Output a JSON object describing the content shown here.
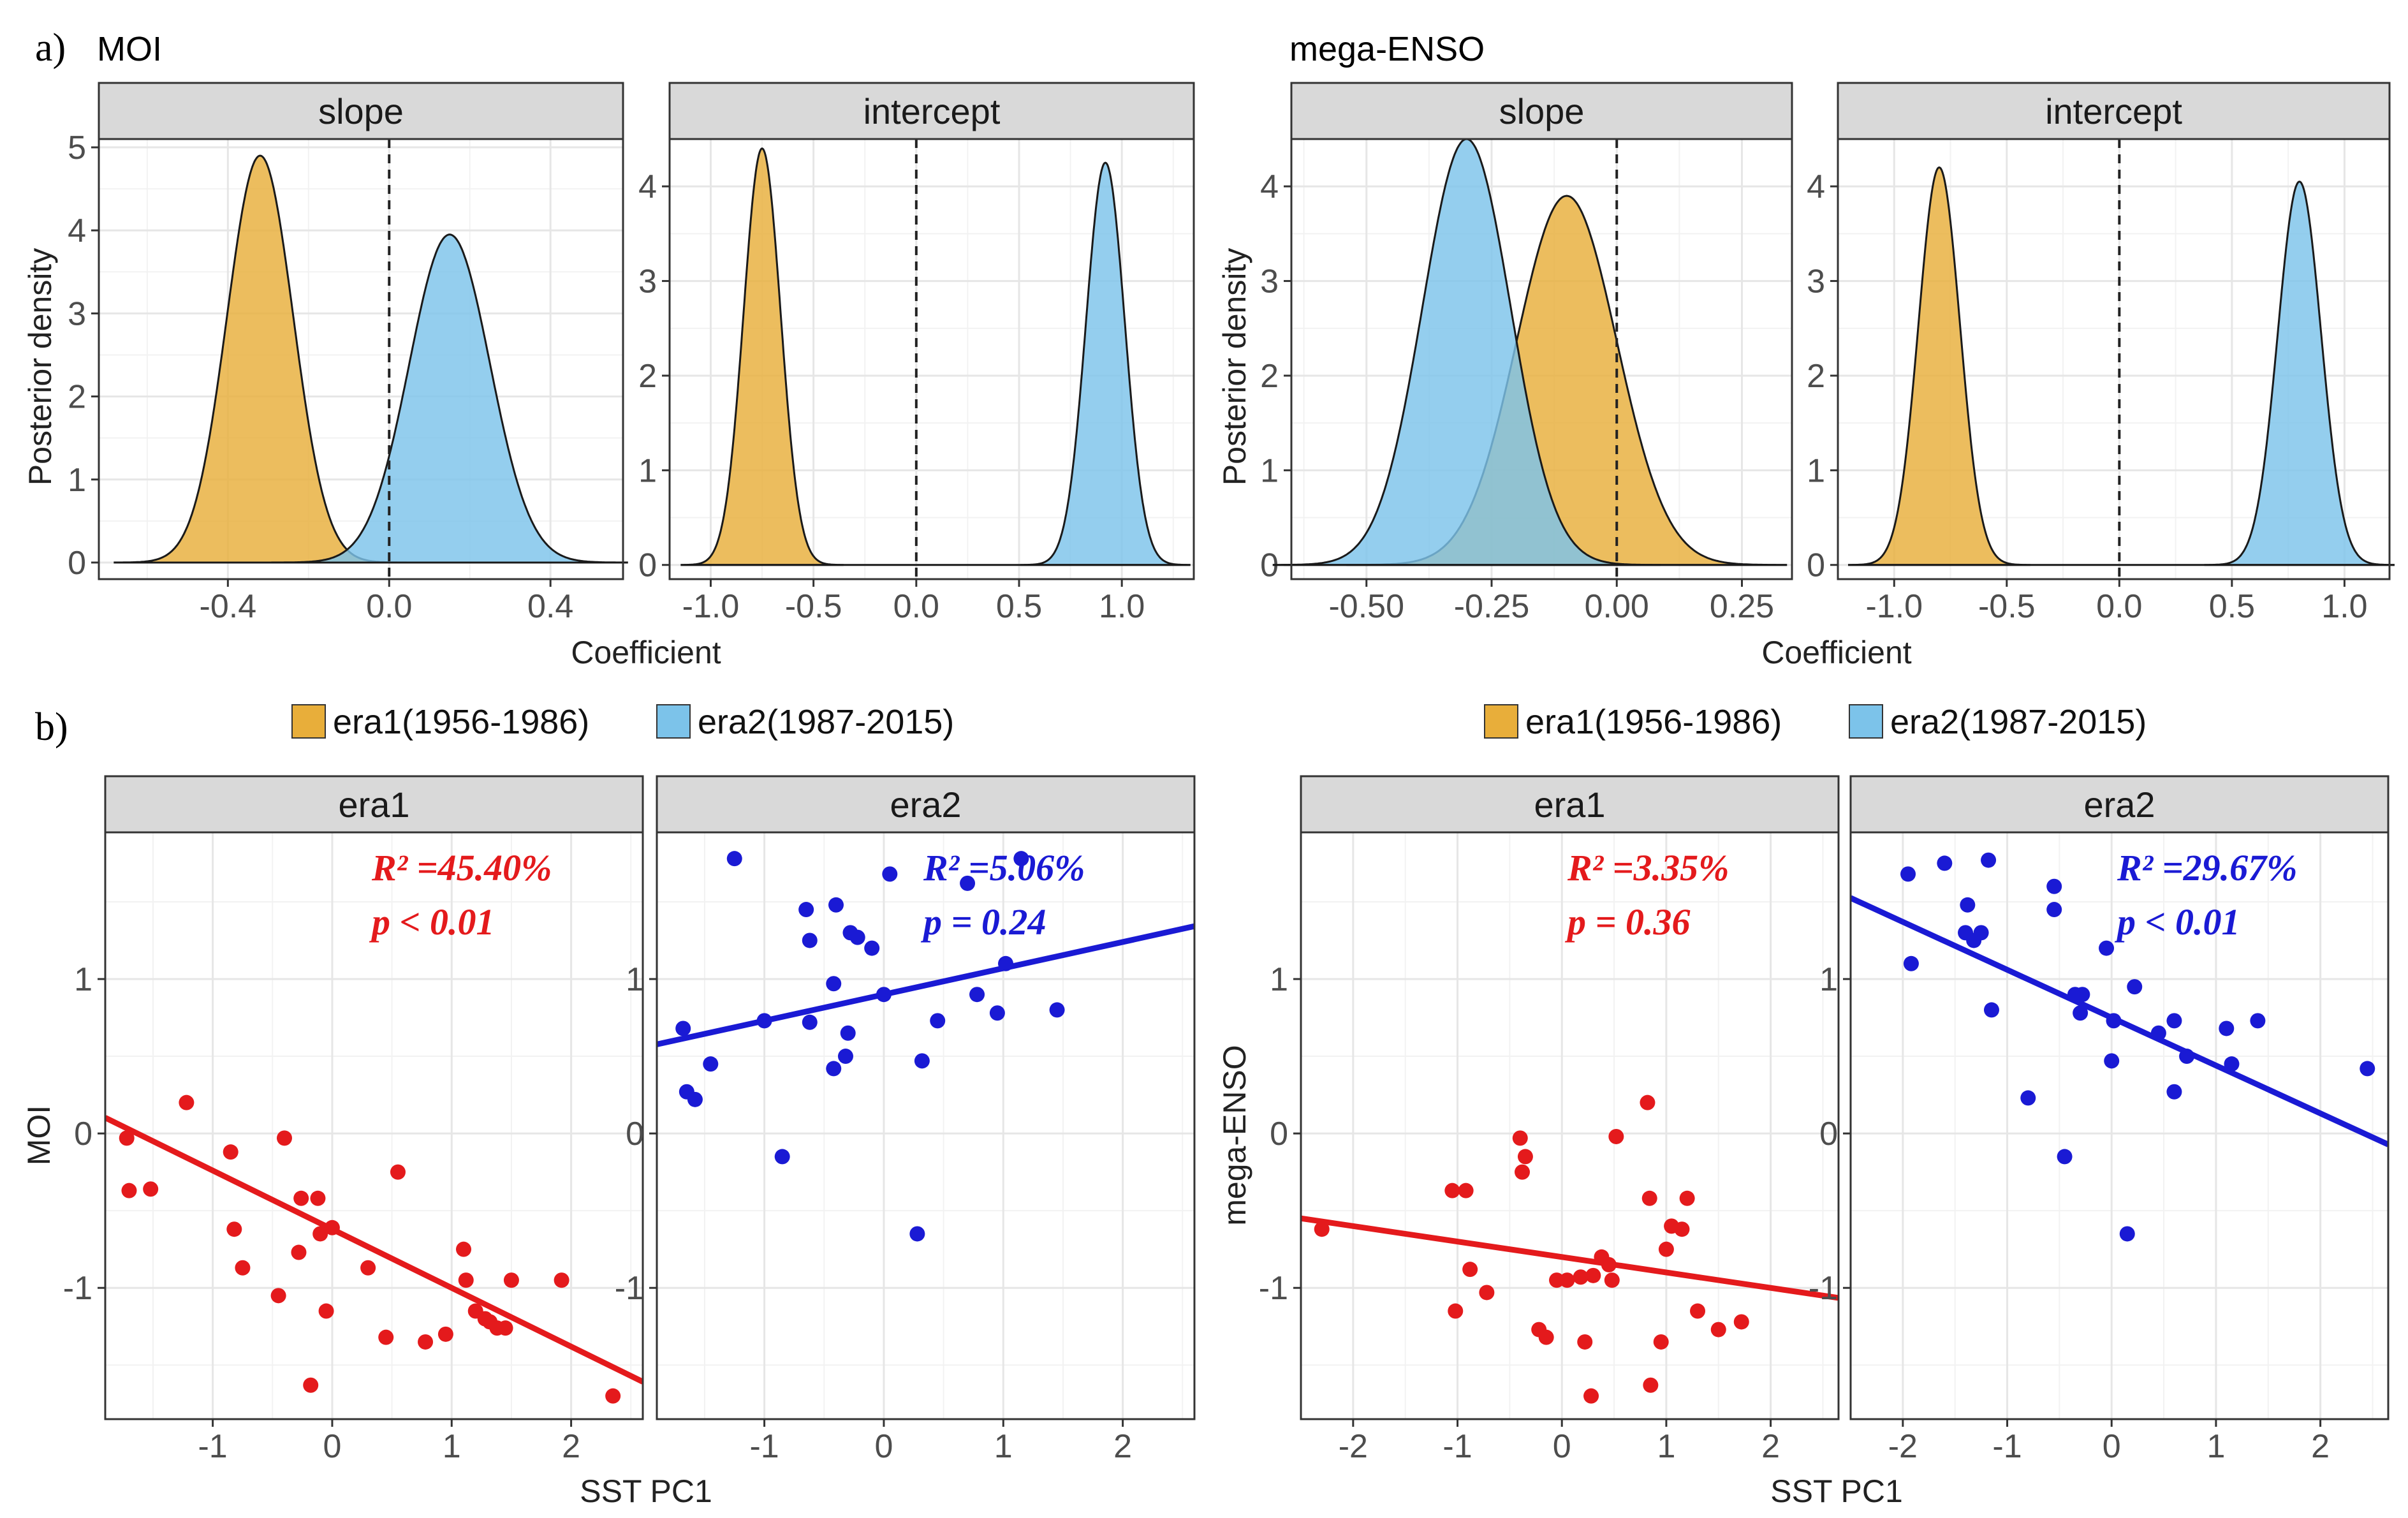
{
  "colors": {
    "era1_fill": "#E8AE3A",
    "era2_fill": "#7CC3EA",
    "era1_point": "#E41A1C",
    "era2_point": "#1A1AD4",
    "strip": "#D9D9D9",
    "grid_major": "#E6E6E6",
    "grid_minor": "#F2F2F2"
  },
  "labels": {
    "panel_a": "a)",
    "panel_b": "b)",
    "group_left": "MOI",
    "group_right": "mega-ENSO",
    "ylabel_a": "Posterior density",
    "xlabel_a": "Coefficient",
    "xlabel_b": "SST PC1",
    "ylabel_b_left": "MOI",
    "ylabel_b_right": "mega-ENSO",
    "legend_era1": "era1(1956-1986)",
    "legend_era2": "era2(1987-2015)"
  },
  "chart_data": [
    {
      "type": "area",
      "id": "a_moi_slope",
      "title": "slope",
      "group": "MOI",
      "xlim": [
        -0.72,
        0.58
      ],
      "ylim": [
        -0.2,
        5.1
      ],
      "xticks": [
        -0.4,
        0.0,
        0.4
      ],
      "xtick_labels": [
        "-0.4",
        "0.0",
        "0.4"
      ],
      "yticks": [
        0,
        1,
        2,
        3,
        4,
        5
      ],
      "ytick_labels": [
        "0",
        "1",
        "2",
        "3",
        "4",
        "5"
      ],
      "xlabel": "Coefficient",
      "ylabel": "Posterior density",
      "vline": 0,
      "series": [
        {
          "name": "era1",
          "mean": -0.32,
          "sd": 0.082,
          "peak": 4.9
        },
        {
          "name": "era2",
          "mean": 0.15,
          "sd": 0.1,
          "peak": 3.95
        }
      ]
    },
    {
      "type": "area",
      "id": "a_moi_intercept",
      "title": "intercept",
      "group": "MOI",
      "xlim": [
        -1.2,
        1.35
      ],
      "ylim": [
        -0.15,
        4.5
      ],
      "xticks": [
        -1.0,
        -0.5,
        0.0,
        0.5,
        1.0
      ],
      "xtick_labels": [
        "-1.0",
        "-0.5",
        "0.0",
        "0.5",
        "1.0"
      ],
      "yticks": [
        0,
        1,
        2,
        3,
        4
      ],
      "ytick_labels": [
        "0",
        "1",
        "2",
        "3",
        "4"
      ],
      "xlabel": "Coefficient",
      "vline": 0,
      "series": [
        {
          "name": "era1",
          "mean": -0.75,
          "sd": 0.09,
          "peak": 4.4
        },
        {
          "name": "era2",
          "mean": 0.92,
          "sd": 0.094,
          "peak": 4.25
        }
      ]
    },
    {
      "type": "area",
      "id": "a_enso_slope",
      "title": "slope",
      "group": "mega-ENSO",
      "xlim": [
        -0.65,
        0.35
      ],
      "ylim": [
        -0.15,
        4.5
      ],
      "xticks": [
        -0.5,
        -0.25,
        0.0,
        0.25
      ],
      "xtick_labels": [
        "-0.50",
        "-0.25",
        "0.00",
        "0.25"
      ],
      "yticks": [
        0,
        1,
        2,
        3,
        4
      ],
      "ytick_labels": [
        "0",
        "1",
        "2",
        "3",
        "4"
      ],
      "xlabel": "Coefficient",
      "ylabel": "Posterior density",
      "vline": 0,
      "series": [
        {
          "name": "era1",
          "mean": -0.1,
          "sd": 0.1,
          "peak": 3.9
        },
        {
          "name": "era2",
          "mean": -0.3,
          "sd": 0.088,
          "peak": 4.5
        }
      ]
    },
    {
      "type": "area",
      "id": "a_enso_intercept",
      "title": "intercept",
      "group": "mega-ENSO",
      "xlim": [
        -1.25,
        1.2
      ],
      "ylim": [
        -0.15,
        4.5
      ],
      "xticks": [
        -1.0,
        -0.5,
        0.0,
        0.5,
        1.0
      ],
      "xtick_labels": [
        "-1.0",
        "-0.5",
        "0.0",
        "0.5",
        "1.0"
      ],
      "yticks": [
        0,
        1,
        2,
        3,
        4
      ],
      "ytick_labels": [
        "0",
        "1",
        "2",
        "3",
        "4"
      ],
      "xlabel": "Coefficient",
      "vline": 0,
      "series": [
        {
          "name": "era1",
          "mean": -0.8,
          "sd": 0.092,
          "peak": 4.2
        },
        {
          "name": "era2",
          "mean": 0.8,
          "sd": 0.096,
          "peak": 4.05
        }
      ]
    },
    {
      "type": "scatter",
      "id": "b_moi_era1",
      "title": "era1",
      "group": "MOI",
      "xlim": [
        -1.9,
        2.6
      ],
      "ylim": [
        -1.85,
        1.95
      ],
      "xticks": [
        -1,
        0,
        1,
        2
      ],
      "xtick_labels": [
        "-1",
        "0",
        "1",
        "2"
      ],
      "yticks": [
        -1,
        0,
        1
      ],
      "ytick_labels": [
        "-1",
        "0",
        "1"
      ],
      "ylabel": "MOI",
      "fit": {
        "intercept": -0.62,
        "slope": -0.38
      },
      "annotation": {
        "r2": "R² =45.40%",
        "p": "p  < 0.01"
      },
      "points": [
        [
          -1.72,
          -0.03
        ],
        [
          -1.7,
          -0.37
        ],
        [
          -1.52,
          -0.36
        ],
        [
          -1.22,
          0.2
        ],
        [
          -0.85,
          -0.12
        ],
        [
          -0.82,
          -0.62
        ],
        [
          -0.75,
          -0.87
        ],
        [
          -0.45,
          -1.05
        ],
        [
          -0.4,
          -0.03
        ],
        [
          -0.28,
          -0.77
        ],
        [
          -0.26,
          -0.42
        ],
        [
          -0.18,
          -1.63
        ],
        [
          -0.12,
          -0.42
        ],
        [
          -0.1,
          -0.65
        ],
        [
          -0.05,
          -1.15
        ],
        [
          0.0,
          -0.61
        ],
        [
          0.3,
          -0.87
        ],
        [
          0.45,
          -1.32
        ],
        [
          0.55,
          -0.25
        ],
        [
          0.78,
          -1.35
        ],
        [
          0.95,
          -1.3
        ],
        [
          1.1,
          -0.75
        ],
        [
          1.12,
          -0.95
        ],
        [
          1.2,
          -1.15
        ],
        [
          1.28,
          -1.2
        ],
        [
          1.32,
          -1.22
        ],
        [
          1.38,
          -1.26
        ],
        [
          1.45,
          -1.26
        ],
        [
          1.5,
          -0.95
        ],
        [
          1.92,
          -0.95
        ],
        [
          2.35,
          -1.7
        ]
      ]
    },
    {
      "type": "scatter",
      "id": "b_moi_era2",
      "title": "era2",
      "group": "MOI",
      "xlim": [
        -1.9,
        2.6
      ],
      "ylim": [
        -1.85,
        1.95
      ],
      "xticks": [
        -1,
        0,
        1,
        2
      ],
      "xtick_labels": [
        "-1",
        "0",
        "1",
        "2"
      ],
      "yticks": [
        -1,
        0,
        1
      ],
      "ytick_labels": [
        "-1",
        "0",
        "1"
      ],
      "fit": {
        "intercept": 0.9,
        "slope": 0.17
      },
      "annotation": {
        "r2": "R² =5.06%",
        "p": "p  = 0.24"
      },
      "points": [
        [
          -1.68,
          0.68
        ],
        [
          -1.65,
          0.27
        ],
        [
          -1.58,
          0.22
        ],
        [
          -1.45,
          0.45
        ],
        [
          -1.25,
          1.78
        ],
        [
          -1.0,
          0.73
        ],
        [
          -0.85,
          -0.15
        ],
        [
          -0.65,
          1.45
        ],
        [
          -0.62,
          1.25
        ],
        [
          -0.62,
          0.72
        ],
        [
          -0.42,
          0.97
        ],
        [
          -0.42,
          0.42
        ],
        [
          -0.4,
          1.48
        ],
        [
          -0.32,
          0.5
        ],
        [
          -0.3,
          0.65
        ],
        [
          -0.28,
          1.3
        ],
        [
          -0.22,
          1.27
        ],
        [
          -0.1,
          1.2
        ],
        [
          0.0,
          0.9
        ],
        [
          0.05,
          1.68
        ],
        [
          0.28,
          -0.65
        ],
        [
          0.32,
          0.47
        ],
        [
          0.45,
          0.73
        ],
        [
          0.7,
          1.62
        ],
        [
          0.78,
          0.9
        ],
        [
          0.95,
          0.78
        ],
        [
          1.02,
          1.1
        ],
        [
          1.15,
          1.78
        ],
        [
          1.45,
          0.8
        ]
      ]
    },
    {
      "type": "scatter",
      "id": "b_enso_era1",
      "title": "era1",
      "group": "mega-ENSO",
      "xlim": [
        -2.5,
        2.65
      ],
      "ylim": [
        -1.85,
        1.95
      ],
      "xticks": [
        -2,
        -1,
        0,
        1,
        2
      ],
      "xtick_labels": [
        "-2",
        "-1",
        "0",
        "1",
        "2"
      ],
      "yticks": [
        -1,
        0,
        1
      ],
      "ytick_labels": [
        "-1",
        "0",
        "1"
      ],
      "ylabel": "mega-ENSO",
      "fit": {
        "intercept": -0.8,
        "slope": -0.1
      },
      "annotation": {
        "r2": "R² =3.35%",
        "p": "p  = 0.36"
      },
      "points": [
        [
          -2.3,
          -0.62
        ],
        [
          -1.05,
          -0.37
        ],
        [
          -1.02,
          -1.15
        ],
        [
          -0.92,
          -0.37
        ],
        [
          -0.88,
          -0.88
        ],
        [
          -0.72,
          -1.03
        ],
        [
          -0.4,
          -0.03
        ],
        [
          -0.38,
          -0.25
        ],
        [
          -0.35,
          -0.15
        ],
        [
          -0.22,
          -1.27
        ],
        [
          -0.15,
          -1.32
        ],
        [
          -0.05,
          -0.95
        ],
        [
          0.05,
          -0.95
        ],
        [
          0.18,
          -0.93
        ],
        [
          0.22,
          -1.35
        ],
        [
          0.3,
          -0.92
        ],
        [
          0.28,
          -1.7
        ],
        [
          0.38,
          -0.8
        ],
        [
          0.45,
          -0.85
        ],
        [
          0.48,
          -0.95
        ],
        [
          0.52,
          -0.02
        ],
        [
          0.82,
          0.2
        ],
        [
          0.84,
          -0.42
        ],
        [
          0.85,
          -1.63
        ],
        [
          0.95,
          -1.35
        ],
        [
          1.0,
          -0.75
        ],
        [
          1.05,
          -0.6
        ],
        [
          1.15,
          -0.62
        ],
        [
          1.2,
          -0.42
        ],
        [
          1.3,
          -1.15
        ],
        [
          1.5,
          -1.27
        ],
        [
          1.72,
          -1.22
        ]
      ]
    },
    {
      "type": "scatter",
      "id": "b_enso_era2",
      "title": "era2",
      "group": "mega-ENSO",
      "xlim": [
        -2.5,
        2.65
      ],
      "ylim": [
        -1.85,
        1.95
      ],
      "xticks": [
        -2,
        -1,
        0,
        1,
        2
      ],
      "xtick_labels": [
        "-2",
        "-1",
        "0",
        "1",
        "2"
      ],
      "yticks": [
        -1,
        0,
        1
      ],
      "ytick_labels": [
        "-1",
        "0",
        "1"
      ],
      "fit": {
        "intercept": 0.75,
        "slope": -0.31
      },
      "annotation": {
        "r2": "R² =29.67%",
        "p": "p  < 0.01"
      },
      "points": [
        [
          -1.95,
          1.68
        ],
        [
          -1.92,
          1.1
        ],
        [
          -1.6,
          1.75
        ],
        [
          -1.4,
          1.3
        ],
        [
          -1.38,
          1.48
        ],
        [
          -1.32,
          1.25
        ],
        [
          -1.25,
          1.3
        ],
        [
          -1.18,
          1.77
        ],
        [
          -1.15,
          0.8
        ],
        [
          -0.8,
          0.23
        ],
        [
          -0.55,
          1.6
        ],
        [
          -0.55,
          1.45
        ],
        [
          -0.45,
          -0.15
        ],
        [
          -0.35,
          0.9
        ],
        [
          -0.3,
          0.78
        ],
        [
          -0.28,
          0.9
        ],
        [
          -0.05,
          1.2
        ],
        [
          0.0,
          0.47
        ],
        [
          0.02,
          0.73
        ],
        [
          0.15,
          -0.65
        ],
        [
          0.22,
          0.95
        ],
        [
          0.45,
          0.65
        ],
        [
          0.6,
          0.73
        ],
        [
          0.6,
          0.27
        ],
        [
          0.72,
          0.5
        ],
        [
          1.1,
          0.68
        ],
        [
          1.15,
          0.45
        ],
        [
          1.4,
          0.73
        ],
        [
          2.45,
          0.42
        ]
      ]
    }
  ]
}
